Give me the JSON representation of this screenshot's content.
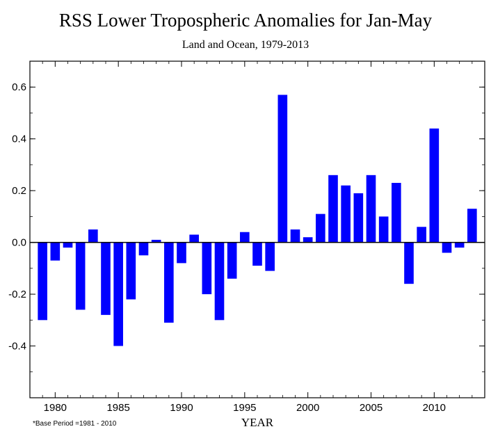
{
  "chart_data": {
    "type": "bar",
    "title": "RSS Lower Tropospheric Anomalies for Jan-May",
    "subtitle": "Land and Ocean, 1979-2013",
    "xlabel": "YEAR",
    "ylabel": "",
    "footnote": "*Base Period =1981 - 2010",
    "bar_color": "#0000ff",
    "xlim": [
      1978,
      2014
    ],
    "ylim": [
      -0.6,
      0.7
    ],
    "x_ticks": [
      1980,
      1985,
      1990,
      1995,
      2000,
      2005,
      2010
    ],
    "y_ticks": [
      -0.4,
      -0.2,
      0.0,
      0.2,
      0.4,
      0.6
    ],
    "y_tick_labels": [
      "-0.4",
      "-0.2",
      "0.0",
      "0.2",
      "0.4",
      "0.6"
    ],
    "categories": [
      1979,
      1980,
      1981,
      1982,
      1983,
      1984,
      1985,
      1986,
      1987,
      1988,
      1989,
      1990,
      1991,
      1992,
      1993,
      1994,
      1995,
      1996,
      1997,
      1998,
      1999,
      2000,
      2001,
      2002,
      2003,
      2004,
      2005,
      2006,
      2007,
      2008,
      2009,
      2010,
      2011,
      2012,
      2013
    ],
    "values": [
      -0.3,
      -0.07,
      -0.02,
      -0.26,
      0.05,
      -0.28,
      -0.4,
      -0.22,
      -0.05,
      0.01,
      -0.31,
      -0.08,
      0.03,
      -0.2,
      -0.3,
      -0.14,
      0.04,
      -0.09,
      -0.11,
      0.57,
      0.05,
      0.02,
      0.11,
      0.26,
      0.22,
      0.19,
      0.26,
      0.1,
      0.23,
      -0.16,
      0.06,
      0.44,
      -0.04,
      -0.02,
      0.13
    ]
  }
}
